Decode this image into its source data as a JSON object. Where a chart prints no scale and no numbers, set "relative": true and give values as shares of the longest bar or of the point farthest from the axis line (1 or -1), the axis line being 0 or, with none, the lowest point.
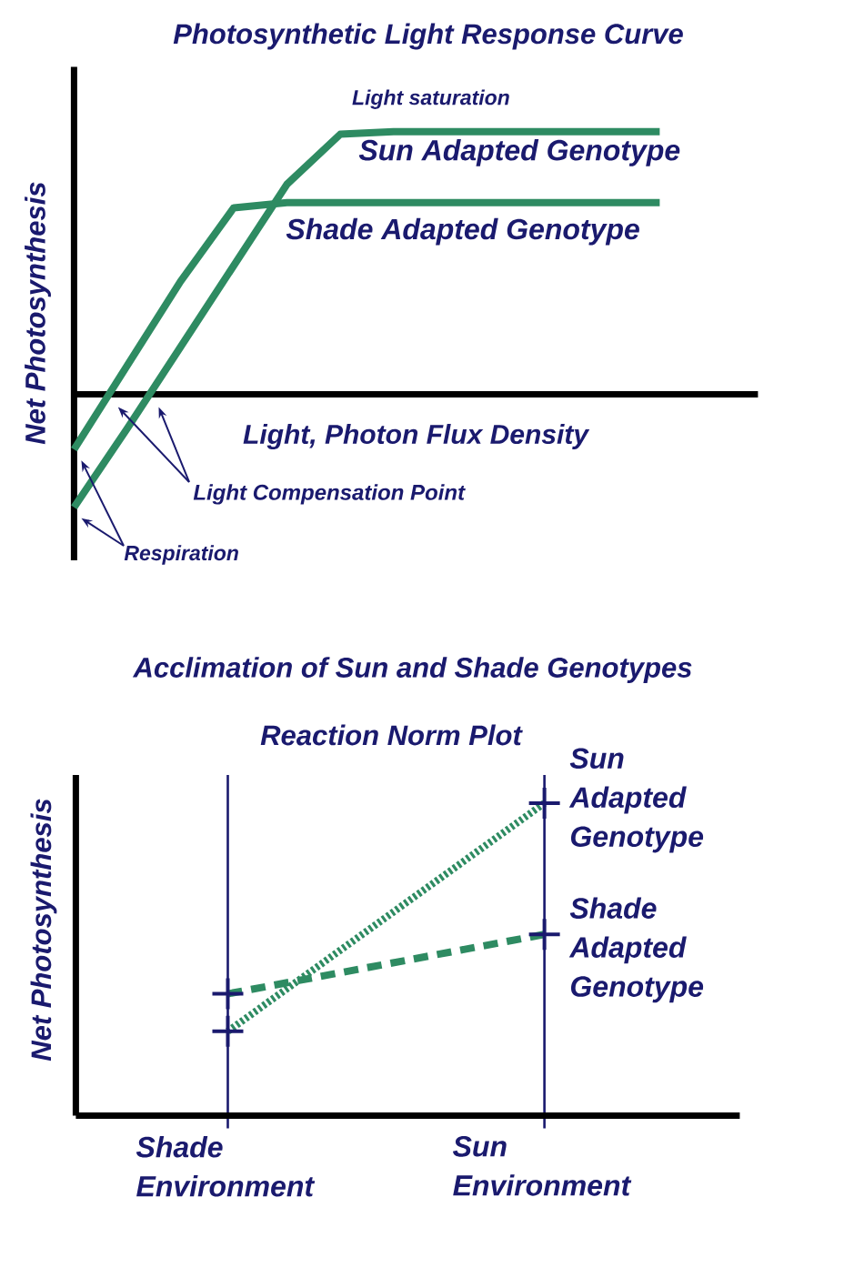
{
  "chart_data": [
    {
      "type": "line",
      "title": "Photosynthetic Light Response Curve",
      "xlabel": "Light, Photon Flux Density",
      "ylabel": "Net Photosynthesis",
      "relative": true,
      "categories": [
        null,
        null,
        null,
        null,
        null,
        null,
        null,
        null,
        null,
        null,
        null,
        null
      ],
      "series": [
        {
          "name": "Sun Adapted Genotype",
          "color": "#2e8b62",
          "line_style": "solid",
          "values": [
            -0.43,
            -0.13,
            0.18,
            0.49,
            0.8,
            0.99,
            1,
            1,
            1,
            1,
            1,
            1
          ]
        },
        {
          "name": "Shade Adapted Genotype",
          "color": "#2e8b62",
          "line_style": "solid",
          "values": [
            -0.21,
            0.11,
            0.43,
            0.71,
            0.73,
            0.73,
            0.73,
            0.73,
            0.73,
            0.73,
            0.73,
            0.73
          ]
        }
      ],
      "annotations": [
        "Light saturation",
        "Light Compensation Point",
        "Respiration"
      ]
    },
    {
      "type": "line",
      "title": "Acclimation of Sun and Shade Genotypes",
      "subtitle": "Reaction Norm Plot",
      "ylabel": "Net Photosynthesis",
      "relative": true,
      "categories": [
        "Shade Environment",
        "Sun Environment"
      ],
      "tick_labels": "x",
      "marker": "cross",
      "grid": "x",
      "series": [
        {
          "name": "Sun Adapted Genotype",
          "color": "#2e8b62",
          "line_style": "dotted",
          "values": [
            0.27,
            1
          ]
        },
        {
          "name": "Shade Adapted Genotype",
          "color": "#2e8b62",
          "line_style": "dashed",
          "values": [
            0.39,
            0.58
          ]
        }
      ]
    }
  ]
}
